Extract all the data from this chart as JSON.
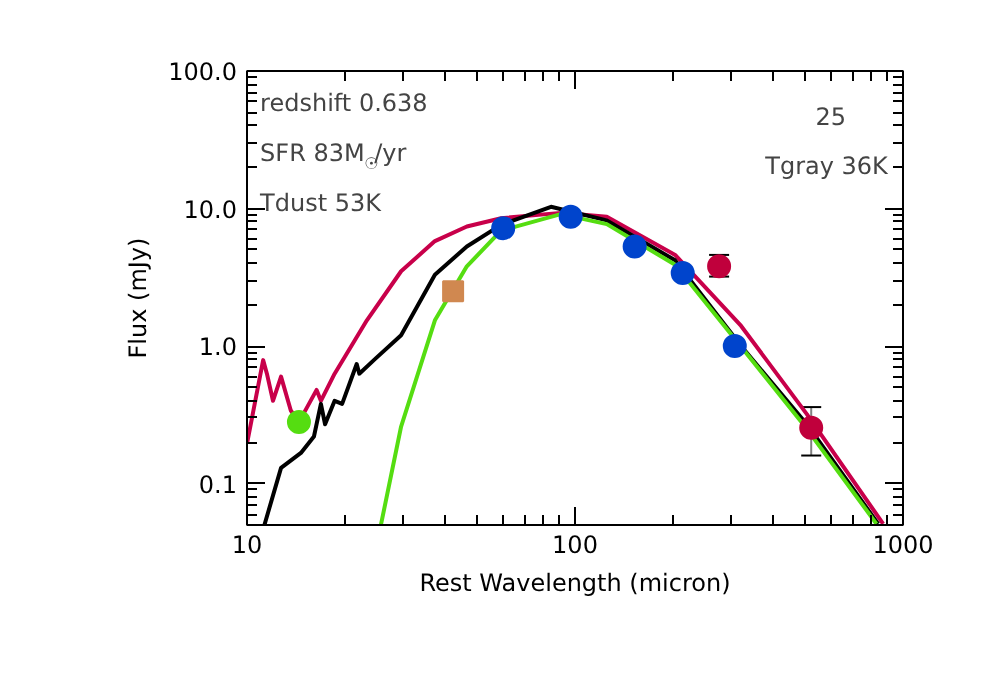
{
  "chart_data": {
    "type": "line",
    "xlabel": "Rest Wavelength (micron)",
    "ylabel": "Flux (mJy)",
    "log": "xy",
    "grid": false,
    "xlim": [
      10,
      1000
    ],
    "ylim": [
      0.05,
      100
    ],
    "xticks": [
      10,
      100,
      1000
    ],
    "yticks": [
      {
        "value": 0.1,
        "label": "0.1"
      },
      {
        "value": 1,
        "label": "1.0"
      },
      {
        "value": 10,
        "label": "10.0"
      },
      {
        "value": 100,
        "label": "100.0"
      }
    ],
    "annotations": [
      "redshift 0.638",
      "SFR 83M$_{☉}$/yr",
      "Tdust 53K",
      "25",
      "Tgray 36K"
    ],
    "series": [
      {
        "color": "#c8004a",
        "x": [
          10,
          11.2,
          11.5,
          12,
          12.7,
          13.6,
          14.4,
          16.3,
          16.8,
          18.5,
          23.2,
          29.5,
          37.4,
          46.8,
          59.5,
          90.5,
          125,
          202,
          321,
          509,
          870
        ],
        "values": [
          0.195,
          0.79,
          0.63,
          0.4,
          0.6,
          0.34,
          0.28,
          0.48,
          0.4,
          0.63,
          1.54,
          3.5,
          5.8,
          7.4,
          8.5,
          9.3,
          8.7,
          4.6,
          1.4,
          0.32,
          0.051
        ]
      },
      {
        "color": "#000000",
        "x": [
          11.3,
          12.7,
          14.6,
          16,
          16.8,
          17.3,
          18.5,
          19.5,
          21.6,
          22,
          24.5,
          29.5,
          37.4,
          46.8,
          59.5,
          84.5,
          125,
          202,
          321,
          509,
          840
        ],
        "values": [
          0.05,
          0.13,
          0.167,
          0.22,
          0.38,
          0.27,
          0.4,
          0.38,
          0.74,
          0.63,
          0.8,
          1.2,
          3.3,
          5.3,
          7.6,
          10.3,
          8.2,
          4.2,
          1.0,
          0.27,
          0.051
        ]
      },
      {
        "color": "#55dd11",
        "x": [
          25.6,
          29.5,
          37.4,
          46.8,
          59.5,
          90.5,
          125,
          202,
          321,
          509,
          830
        ],
        "values": [
          0.05,
          0.26,
          1.54,
          3.8,
          6.9,
          9.1,
          7.7,
          3.9,
          0.99,
          0.25,
          0.051
        ]
      },
      {
        "type": "scatter",
        "marker": "circle",
        "color": "#0044cc",
        "x": [
          60.4,
          97,
          152,
          213,
          307
        ],
        "values": [
          7.2,
          8.7,
          5.3,
          3.4,
          1.0
        ]
      },
      {
        "type": "scatter",
        "marker": "circle",
        "color": "#c0003c",
        "x": [
          275,
          525
        ],
        "values": [
          3.8,
          0.255
        ],
        "errors": [
          [
            3.2,
            4.6
          ],
          [
            0.16,
            0.36
          ]
        ]
      },
      {
        "type": "scatter",
        "marker": "square",
        "color": "#d08850",
        "x": [
          42.5
        ],
        "values": [
          2.5
        ]
      },
      {
        "type": "scatter",
        "marker": "circle",
        "color": "#55dd11",
        "x": [
          14.4
        ],
        "values": [
          0.28
        ]
      }
    ]
  }
}
